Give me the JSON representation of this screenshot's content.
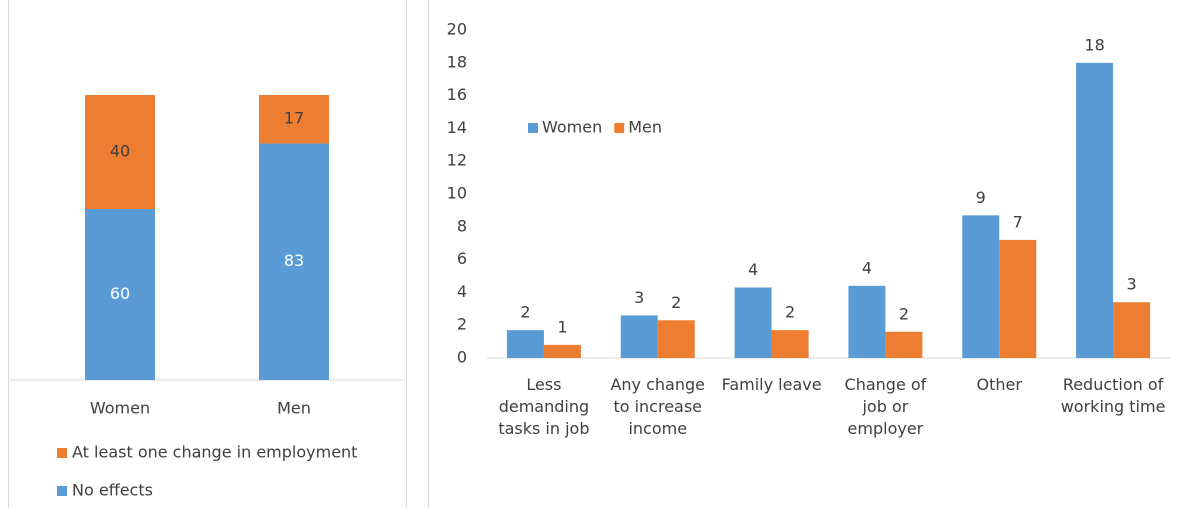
{
  "chart_data": [
    {
      "type": "bar",
      "stacked": true,
      "categories": [
        "Women",
        "Men"
      ],
      "series": [
        {
          "name": "No effects",
          "color": "#5b9bd5",
          "values": [
            60,
            83
          ]
        },
        {
          "name": "At least one change in employment",
          "color": "#ed7d31",
          "values": [
            40,
            17
          ]
        }
      ]
    },
    {
      "type": "bar",
      "categories": [
        "Less demanding tasks in job",
        "Any change to increase income",
        "Family leave",
        "Change of job or employer",
        "Other",
        "Reduction of working time"
      ],
      "series": [
        {
          "name": "Women",
          "color": "#5b9bd5",
          "values": [
            1.7,
            2.6,
            4.3,
            4.4,
            8.7,
            18
          ],
          "value_labels": [
            "2",
            "3",
            "4",
            "4",
            "9",
            "18"
          ]
        },
        {
          "name": "Men",
          "color": "#ed7d31",
          "values": [
            0.8,
            2.3,
            1.7,
            1.6,
            7.2,
            3.4
          ],
          "value_labels": [
            "1",
            "2",
            "2",
            "2",
            "7",
            "3"
          ]
        }
      ],
      "ylim": [
        0,
        20
      ],
      "yticks": [
        0,
        2,
        4,
        6,
        8,
        10,
        12,
        14,
        16,
        18,
        20
      ],
      "legend": "top-left"
    }
  ]
}
